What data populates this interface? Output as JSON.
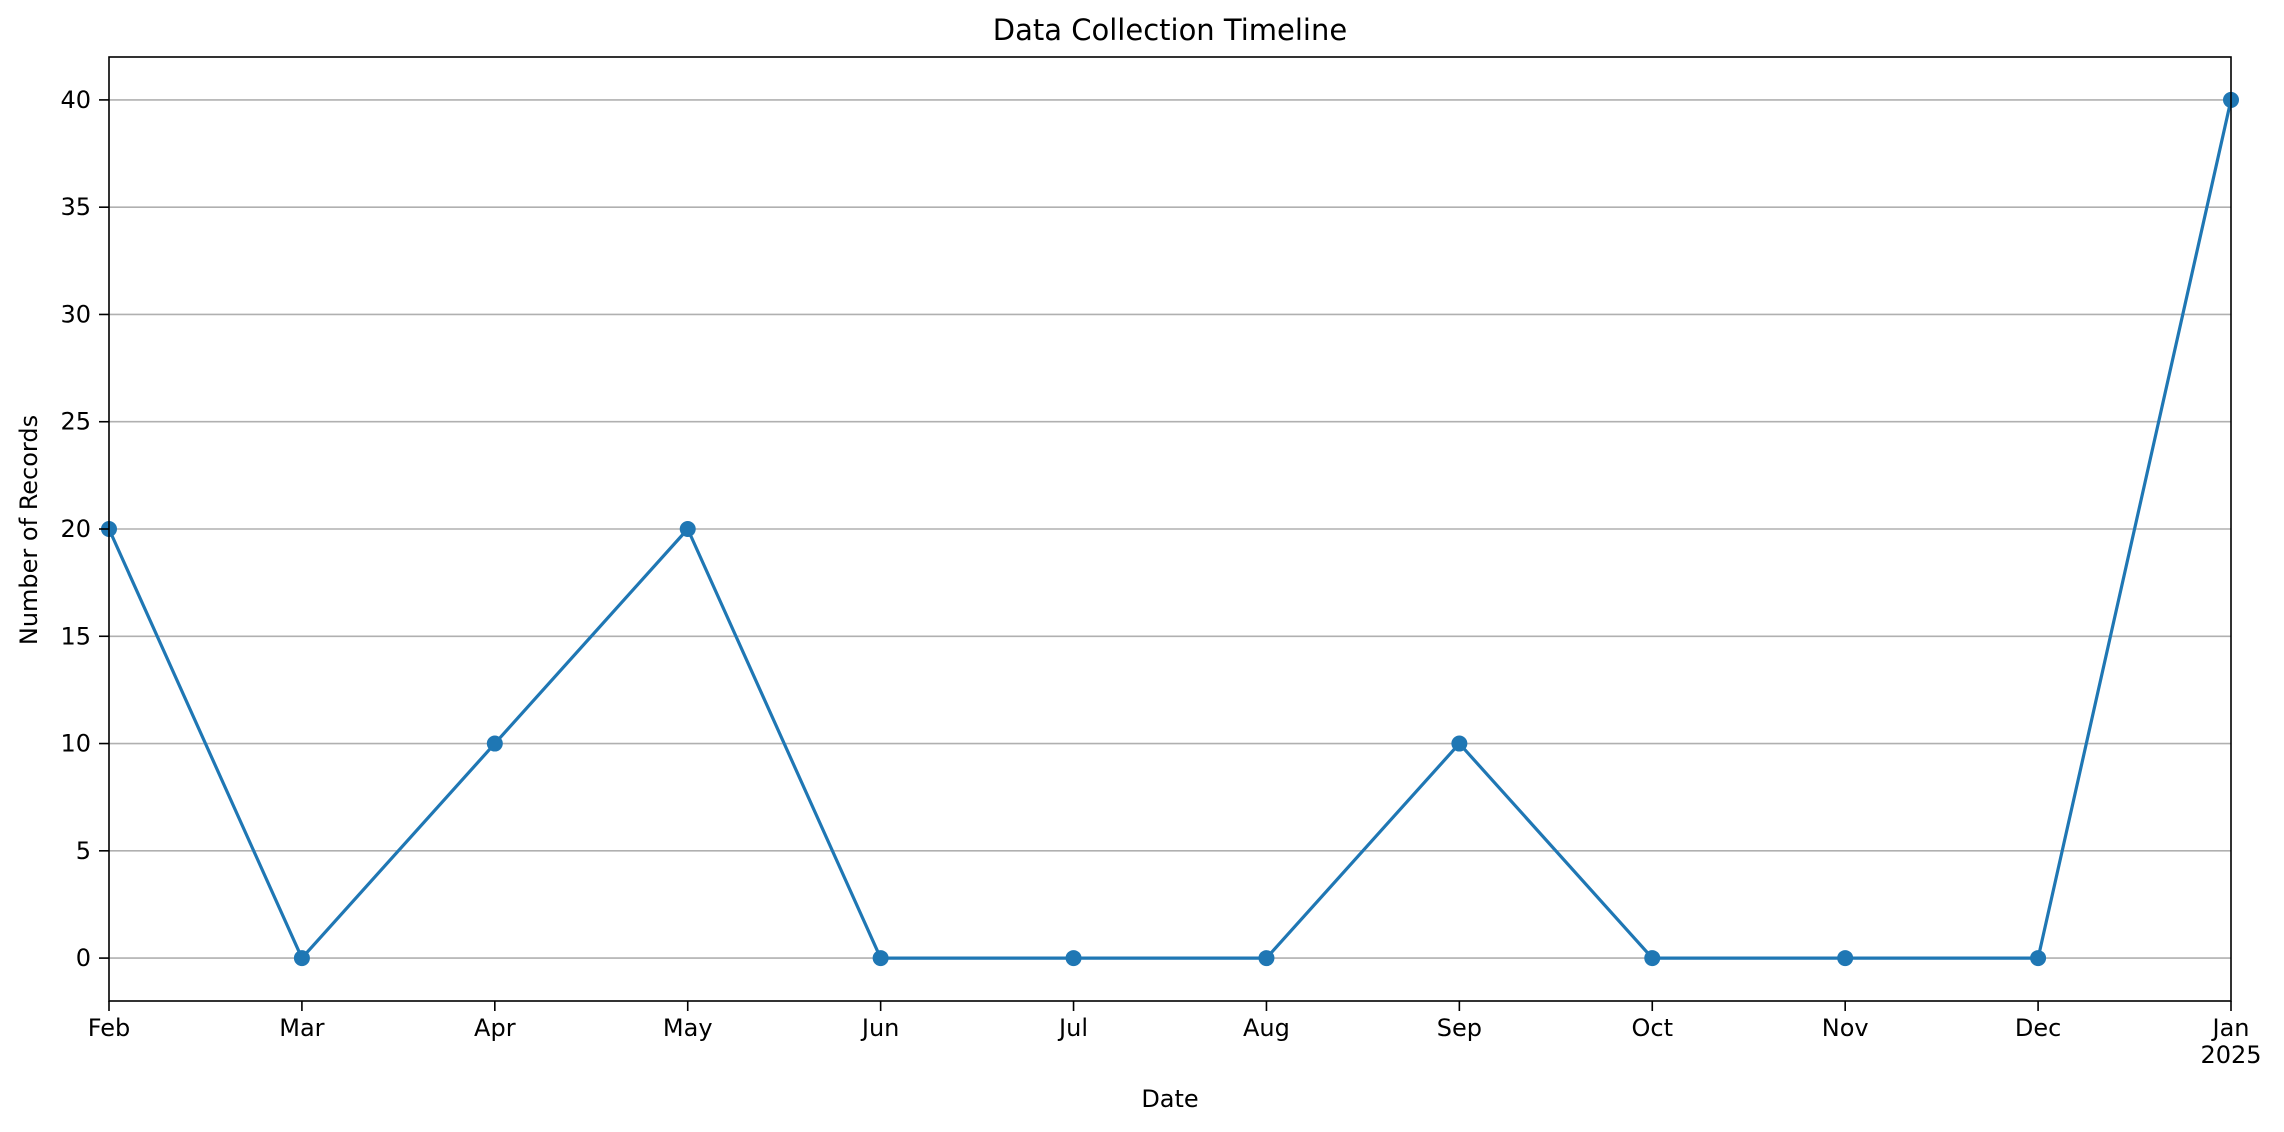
{
  "chart_data": {
    "type": "line",
    "title": "Data Collection Timeline",
    "xlabel": "Date",
    "ylabel": "Number of Records",
    "x_tick_labels": [
      "Feb",
      "Mar",
      "Apr",
      "May",
      "Jun",
      "Jul",
      "Aug",
      "Sep",
      "Oct",
      "Nov",
      "Dec",
      "Jan"
    ],
    "x_year_label": "2025",
    "series": [
      {
        "x": [
          "2024-02",
          "2024-03",
          "2024-04",
          "2024-05",
          "2024-06",
          "2024-07",
          "2024-08",
          "2024-09",
          "2024-10",
          "2024-11",
          "2024-12",
          "2025-01"
        ],
        "values": [
          20,
          0,
          10,
          20,
          0,
          0,
          0,
          10,
          0,
          0,
          0,
          40
        ],
        "marker": "circle"
      }
    ],
    "y_ticks": [
      "0",
      "5",
      "10",
      "15",
      "20",
      "25",
      "30",
      "35",
      "40"
    ],
    "ylim": [
      -2,
      42
    ],
    "grid": "horizontal",
    "colors": {
      "series": "#1f77b4",
      "grid": "#b0b0b0",
      "axes": "#000000"
    }
  }
}
